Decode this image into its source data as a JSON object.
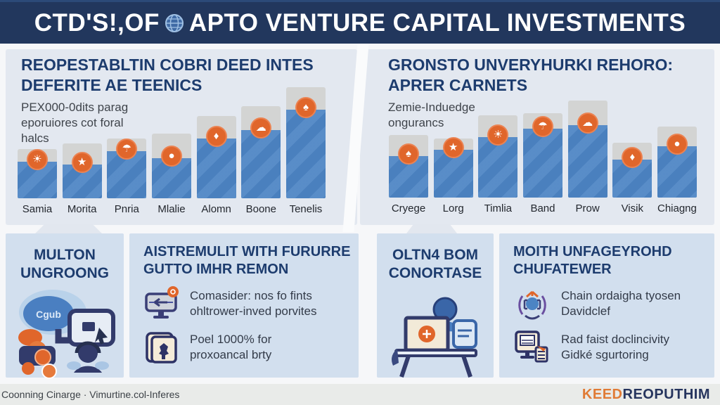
{
  "header": {
    "title_prefix": "CTD'S!,OF",
    "title_suffix": "APTO VENTURE CAPITAL INVESTMENTS"
  },
  "left_panel": {
    "heading_line1": "REOPESTABLTIN COBRI DEED INTES",
    "heading_line2": "DEFERITE AE TEENICS",
    "subtext_lines": [
      "PEX000-0dits parag",
      "eporuiores cot foral",
      "halcs"
    ]
  },
  "right_panel": {
    "heading_line1": "GRONSTO UNVERYHURKI REHORO:",
    "heading_line2": "APRER CARNETS",
    "subtext_lines": [
      "Zemie-Induedge",
      "ongurancs"
    ]
  },
  "chart_data": [
    {
      "type": "bar",
      "title": "REOPESTABLTIN COBRI DEED INTES DEFERITE AE TEENICS",
      "subtitle": "PEX000-0dits parag eporuiores cot foral halcs",
      "categories": [
        "Samia",
        "Morita",
        "Pnria",
        "Mlalie",
        "Alomn",
        "Boone",
        "Tenelis"
      ],
      "series": [
        {
          "name": "track-total",
          "values": [
            70,
            78,
            85,
            92,
            117,
            131,
            158
          ]
        },
        {
          "name": "blue-fill",
          "values": [
            52,
            48,
            67,
            57,
            85,
            97,
            126
          ]
        }
      ],
      "icons": [
        "☀",
        "★",
        "☂",
        "●",
        "♦",
        "☁",
        "♠"
      ],
      "xlabel": "",
      "ylabel": "",
      "ylim": [
        0,
        170
      ],
      "grid": false,
      "legend": "none",
      "note": "unlabeled relative units read from pixel heights; ascending trend left to right"
    },
    {
      "type": "bar",
      "title": "GRONSTO UNVERYHURKI REHORO: APRER CARNETS",
      "subtitle": "Zemie-Induedge ongurancs",
      "categories": [
        "Cryege",
        "Lorg",
        "Timlia",
        "Band",
        "Prow",
        "Visik",
        "Chiagng"
      ],
      "series": [
        {
          "name": "track-total",
          "values": [
            89,
            84,
            117,
            120,
            138,
            78,
            101
          ]
        },
        {
          "name": "blue-fill",
          "values": [
            59,
            68,
            86,
            98,
            103,
            54,
            73
          ]
        }
      ],
      "icons": [
        "♠",
        "★",
        "☀",
        "☂",
        "☁",
        "♦",
        "●"
      ],
      "xlabel": "",
      "ylabel": "",
      "ylim": [
        0,
        170
      ],
      "grid": false,
      "legend": "none",
      "note": "unlabeled relative units read from pixel heights; peak at Prow"
    }
  ],
  "cards": [
    {
      "title_line1": "MULTON",
      "title_line2": "UNGROONG",
      "illustration": "cloud-device-people",
      "cloud_label": "Cgub"
    },
    {
      "title_line1": "AISTREMULIT WITH FURURRE",
      "title_line2": "GUTTO IMHR REMON",
      "bullets": [
        {
          "icon": "monitor-arrow-icon",
          "line1": "Comasider: nos fo fints",
          "line2": "ohltrower-inved porvites"
        },
        {
          "icon": "certificate-icon",
          "line1": "Poel 1000% for",
          "line2": "proxoancal brty"
        }
      ]
    },
    {
      "title_line1": "OLTN4 BOM",
      "title_line2": "CONORTASE",
      "illustration": "desk-monitor-person"
    },
    {
      "title_line1": "MOITH UNFAGEYROHD",
      "title_line2": "CHUFATEWER",
      "bullets": [
        {
          "icon": "network-icon",
          "line1": "Chain ordaigha tyosen",
          "line2": "Davidclef"
        },
        {
          "icon": "monitor-document-icon",
          "line1": "Rad faist doclincivity",
          "line2": "Gidké sgurtoring"
        }
      ]
    }
  ],
  "footer": {
    "left_text": "Coonning Cinarge · Vimurtine.col-Inferes",
    "logo_orange": "KEED",
    "logo_navy": "REOPUTHIM"
  },
  "colors": {
    "header_bg": "#22375d",
    "panel_bg": "#e3e8f0",
    "card_bg": "#d2dfee",
    "bar_blue": "#4c84c4",
    "bar_track_gray": "#d3d4d3",
    "accent_orange": "#e0662b",
    "heading_navy": "#1d3c6e",
    "footer_bg": "#e9ebe9"
  }
}
